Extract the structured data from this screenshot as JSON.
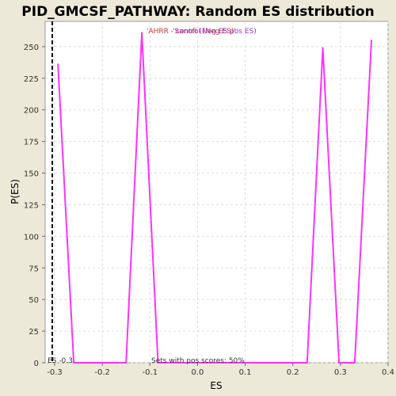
{
  "chart_data": {
    "type": "line",
    "title": "PID_GMCSF_PATHWAY: Random ES distribution",
    "xlabel": "ES",
    "ylabel": "P(ES)",
    "xlim": [
      -0.32,
      0.4
    ],
    "ylim": [
      0,
      270
    ],
    "x_ticks": [
      -0.3,
      -0.2,
      -0.1,
      0.0,
      0.1,
      0.2,
      0.3,
      0.4
    ],
    "x_tick_labels": [
      "-0.3",
      "-0.2",
      "-0.1",
      "0.0",
      "0.1",
      "0.2",
      "0.3",
      "0.4"
    ],
    "y_ticks": [
      0,
      25,
      50,
      75,
      100,
      125,
      150,
      175,
      200,
      225,
      250
    ],
    "y_tick_labels": [
      "0",
      "25",
      "50",
      "75",
      "100",
      "125",
      "150",
      "175",
      "200",
      "225",
      "250"
    ],
    "grid": true,
    "series": [
      {
        "color": "#ff33ff",
        "x": [
          -0.293,
          -0.26,
          -0.15,
          -0.117,
          -0.083,
          0.23,
          0.263,
          0.297,
          0.33,
          0.365
        ],
        "y": [
          236,
          0,
          0,
          261,
          0,
          0,
          249,
          0,
          0,
          255
        ]
      }
    ],
    "annotations": {
      "es_marker": {
        "x": -0.305,
        "label": "ES -0.3",
        "color": "#333333"
      },
      "legend_text_1": {
        "text": "'AHRR - control (Neg ES)'",
        "color": "#cc3333"
      },
      "legend_text_2": {
        "text": "'Sanofi (Neg ES pos ES)",
        "color": "#9933cc"
      },
      "pos_scores": {
        "text": "Sets with pos scores: 50%",
        "color": "#333333"
      }
    }
  }
}
